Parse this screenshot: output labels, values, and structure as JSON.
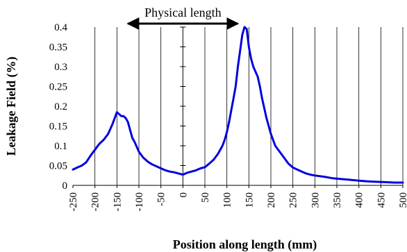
{
  "chart_data": {
    "type": "line",
    "xlabel": "Position along length (mm)",
    "ylabel": "Leakage Field (%)",
    "xlim": [
      -250,
      500
    ],
    "ylim": [
      0,
      0.4
    ],
    "xticks": [
      -250,
      -200,
      -150,
      -100,
      -50,
      0,
      50,
      100,
      150,
      200,
      250,
      300,
      350,
      400,
      450,
      500
    ],
    "yticks": [
      0,
      0.05,
      0.1,
      0.15,
      0.2,
      0.25,
      0.3,
      0.35,
      0.4
    ],
    "ytick_labels": [
      "0",
      "0.05",
      "0.1",
      "0.15",
      "0.2",
      "0.25",
      "0.3",
      "0.35",
      "0.4"
    ],
    "grid": "vertical",
    "annotation": {
      "text": "Physical length",
      "arrow_from": -125,
      "arrow_to": 125
    },
    "series": [
      {
        "color": "#0000dd",
        "x": [
          -250,
          -240,
          -230,
          -220,
          -210,
          -200,
          -190,
          -180,
          -170,
          -160,
          -150,
          -145,
          -140,
          -135,
          -130,
          -125,
          -120,
          -115,
          -110,
          -100,
          -90,
          -80,
          -70,
          -60,
          -50,
          -40,
          -30,
          -20,
          -10,
          0,
          10,
          20,
          30,
          40,
          50,
          60,
          70,
          80,
          90,
          95,
          100,
          105,
          110,
          115,
          120,
          125,
          130,
          135,
          140,
          145,
          150,
          155,
          160,
          170,
          175,
          180,
          190,
          200,
          210,
          220,
          230,
          240,
          250,
          260,
          270,
          280,
          290,
          300,
          320,
          340,
          360,
          380,
          400,
          420,
          440,
          460,
          480,
          500
        ],
        "y": [
          0.04,
          0.045,
          0.05,
          0.058,
          0.075,
          0.09,
          0.105,
          0.115,
          0.13,
          0.155,
          0.185,
          0.18,
          0.175,
          0.175,
          0.17,
          0.16,
          0.14,
          0.12,
          0.11,
          0.085,
          0.07,
          0.06,
          0.053,
          0.048,
          0.043,
          0.038,
          0.035,
          0.033,
          0.03,
          0.027,
          0.032,
          0.035,
          0.038,
          0.043,
          0.046,
          0.055,
          0.065,
          0.08,
          0.1,
          0.115,
          0.135,
          0.16,
          0.19,
          0.22,
          0.25,
          0.3,
          0.34,
          0.38,
          0.4,
          0.395,
          0.35,
          0.32,
          0.3,
          0.275,
          0.25,
          0.22,
          0.17,
          0.13,
          0.1,
          0.085,
          0.07,
          0.055,
          0.045,
          0.04,
          0.035,
          0.03,
          0.027,
          0.025,
          0.022,
          0.018,
          0.016,
          0.014,
          0.012,
          0.01,
          0.009,
          0.008,
          0.007,
          0.007
        ]
      }
    ]
  }
}
